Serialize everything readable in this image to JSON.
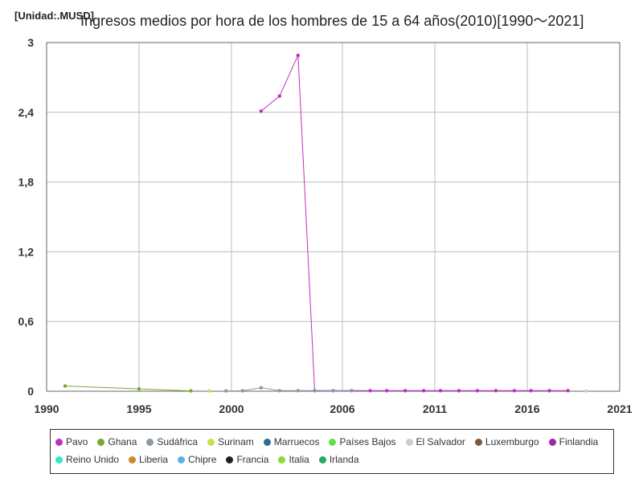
{
  "unit_label": "[Unidad:.MUSD]",
  "title": "Ingresos medios por hora de los hombres de 15 a 64 años(2010)[1990～2021]",
  "chart_data": {
    "type": "line",
    "title": "Ingresos medios por hora de los hombres de 15 a 64 años(2010)[1990～2021]",
    "unit": "[Unidad:.MUSD]",
    "xlim": [
      1990,
      2021
    ],
    "ylim": [
      0,
      3
    ],
    "x_ticks": [
      1990,
      1995,
      2000,
      2006,
      2011,
      2016,
      2021
    ],
    "x_tick_labels": [
      "1990",
      "1995",
      "2000",
      "2006",
      "2011",
      "2016",
      "2021"
    ],
    "y_ticks": [
      0,
      0.6,
      1.2,
      1.8,
      2.4,
      3
    ],
    "y_tick_labels": [
      "0",
      "0,6",
      "1,2",
      "1,8",
      "2,4",
      "3"
    ],
    "grid": true,
    "legend_position": "bottom",
    "series": [
      {
        "name": "Pavo",
        "color": "#c02ec0",
        "x": [
          2001.6,
          2002.6,
          2003.6,
          2004.5,
          2005.5,
          2006.5,
          2007.5,
          2008.4,
          2009.4,
          2010.4,
          2011.3,
          2012.3,
          2013.3,
          2014.3,
          2015.3,
          2016.2,
          2017.2,
          2018.2
        ],
        "y": [
          2.41,
          2.54,
          2.89,
          0.005,
          0.005,
          0.005,
          0.005,
          0.005,
          0.005,
          0.005,
          0.005,
          0.005,
          0.005,
          0.005,
          0.005,
          0.005,
          0.005,
          0.005
        ]
      },
      {
        "name": "Ghana",
        "color": "#7aa832",
        "x": [
          1991,
          1995,
          1997.8
        ],
        "y": [
          0.045,
          0.02,
          0.003
        ]
      },
      {
        "name": "Sudáfrica",
        "color": "#8c99a8",
        "x": [
          1999.7,
          2000.6,
          2001.6,
          2002.6,
          2003.6,
          2004.5,
          2005.5,
          2006.5
        ],
        "y": [
          0.003,
          0.004,
          0.03,
          0.005,
          0.005,
          0.005,
          0.005,
          0.005
        ]
      },
      {
        "name": "Surinam",
        "color": "#c8e04a",
        "x": [
          1998.8
        ],
        "y": [
          0.002
        ]
      },
      {
        "name": "Marruecos",
        "color": "#2c6e8c",
        "x": [],
        "y": []
      },
      {
        "name": "Países Bajos",
        "color": "#66dd44",
        "x": [],
        "y": []
      },
      {
        "name": "El Salvador",
        "color": "#cccccc",
        "x": [
          2019.2
        ],
        "y": [
          0.002
        ]
      },
      {
        "name": "Luxemburgo",
        "color": "#7a5a3a",
        "x": [],
        "y": []
      },
      {
        "name": "Finlandia",
        "color": "#9a2aa8",
        "x": [],
        "y": []
      },
      {
        "name": "Reino Unido",
        "color": "#33e8c8",
        "x": [],
        "y": []
      },
      {
        "name": "Liberia",
        "color": "#cc8a2e",
        "x": [],
        "y": []
      },
      {
        "name": "Chipre",
        "color": "#5ab4e0",
        "x": [],
        "y": []
      },
      {
        "name": "Francia",
        "color": "#222222",
        "x": [],
        "y": []
      },
      {
        "name": "Italia",
        "color": "#88dd33",
        "x": [],
        "y": []
      },
      {
        "name": "Irlanda",
        "color": "#22aa66",
        "x": [],
        "y": []
      }
    ]
  }
}
